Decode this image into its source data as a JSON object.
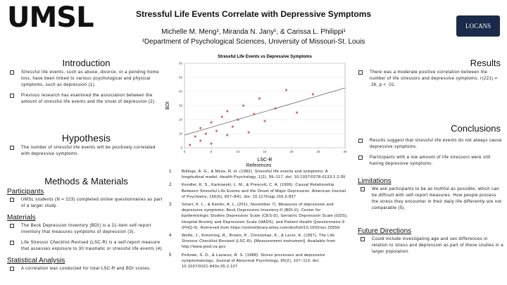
{
  "header": {
    "logo": "UMSL",
    "lab_logo": "LOCANS",
    "title": "Stressful Life Events Correlate with Depressive Symptoms",
    "authors": "Michelle M. Meng¹, Miranda N. Jany¹, & Carissa L. Philippi¹",
    "affiliation": "¹Department of Psychological Sciences, University of Missouri-St. Louis"
  },
  "introduction": {
    "heading": "Introduction",
    "bullets": [
      "Stressful life events, such as abuse, divorce, or a pending home loss, have been linked to various psychological and physical symptoms, such as depression (1).",
      "Previous research has examined the association between the amount of stressful life events and the onset of depression (2)."
    ]
  },
  "hypothesis": {
    "heading": "Hypothesis",
    "bullets": [
      "The number of stressful life events will be positively correlated with depressive symptoms."
    ]
  },
  "methods": {
    "heading": "Methods & Materials",
    "subsections": [
      {
        "heading": "Participants",
        "bullets": [
          "UMSL students (N = 223) completed online questionnaires as part of a larger study."
        ]
      },
      {
        "heading": "Materials",
        "bullets": [
          "The Beck Depression Inventory (BDI) is a 21-item self-report inventory that measures symptoms of depression (3).",
          "Life Stressor Checklist-Revised (LSC-R) is a self-report measure that assesses exposure to 30 traumatic or stressful life events (4)."
        ]
      },
      {
        "heading": "Statistical Analysis",
        "bullets": [
          "A correlation was conducted for total LSC-R and BDI scores."
        ]
      }
    ]
  },
  "chart": {
    "title": "Stressful Life Events vs Depressive Symptoms",
    "x_label": "LSC-R",
    "y_label": "BDI",
    "xlim": [
      0,
      30
    ],
    "xticks": [
      0,
      5,
      10,
      15,
      20,
      25,
      30
    ],
    "ylim": [
      0,
      60
    ],
    "yticks": [
      0,
      10,
      20,
      30,
      40,
      50,
      60
    ],
    "x": [
      1,
      2,
      3,
      3,
      4,
      5,
      5,
      6,
      7,
      8,
      8,
      9,
      10,
      11,
      12,
      13,
      14,
      15,
      17,
      19,
      21,
      24
    ],
    "y": [
      2,
      8,
      5,
      14,
      10,
      3,
      18,
      12,
      22,
      9,
      26,
      15,
      20,
      30,
      11,
      24,
      35,
      19,
      28,
      41,
      25,
      38
    ]
  },
  "references": {
    "heading": "References",
    "items": [
      {
        "num": "1",
        "text": "Billings, A. G., & Moos, R. H. (1982). Stressful life events and symptoms: A longitudinal model. Health Psychology, 1(2), 99–117. doi: 10.1037/0278-6133.1.2.99"
      },
      {
        "num": "2",
        "text": "Kendler, K. S., Karkowski, L. M., & Prescott, C. A. (1999). Causal Relationship Between Stressful Life Events and the Onset of Major Depression. American Journal of Psychiatry, 156(6), 837–841. doi: 10.1176/ajp.156.6.837"
      },
      {
        "num": "3",
        "text": "Smarr, K. L., & Keefer, A. L. (2011, November 7). Measures of depression and depressive symptoms: Beck Depression Inventory-II (BDI-II), Center for Epidemiologic Studies Depression Scale (CES-D), Geriatric Depression Scale (GDS), Hospital Anxiety and Depression Scale (HADS), and Patient Health Questionnaire-9 (PHQ-9). Retrieved from https://onlinelibrary.wiley.com/doi/full/10.1002/acr.20556"
      },
      {
        "num": "4",
        "text": "Wolfe, J., Kimerling, R., Brown, P., Chrestman, K., & Levin, K. (1997). The Life Stressor Checklist-Revised (LSC-R). [Measurement instrument]. Available from http://www.ptsd.va.gov"
      },
      {
        "num": "5",
        "text": "Pellowe, S. D., & Lazarus, R. S. (1988). Stress processes and depressive symptomatology. Journal of Abnormal Psychology, 95(2), 107–113. doi: 10.1037/0021-843x.95.2.107"
      }
    ]
  },
  "results": {
    "heading": "Results",
    "bullets": [
      "There was a moderate positive correlation between the number of life stressors and depressive symptoms, r(221) = .26, p < .01."
    ]
  },
  "conclusions": {
    "heading": "Conclusions",
    "bullets": [
      "Results suggest that stressful life events do not always cause depressive symptoms.",
      "Participants with a low amount of life stressors were still having depressive symptoms."
    ]
  },
  "limitations": {
    "heading": "Limitations",
    "bullets": [
      "We ask participants to be as truthful as possible, which can be difficult with self-report measures. How people process the stress they encounter in their daily life differently are not comparable (5)."
    ]
  },
  "future": {
    "heading": "Future Directions",
    "bullets": [
      "Could include investigating age and sex differences in relation to stress and depression as part of these studies in a larger population."
    ]
  }
}
